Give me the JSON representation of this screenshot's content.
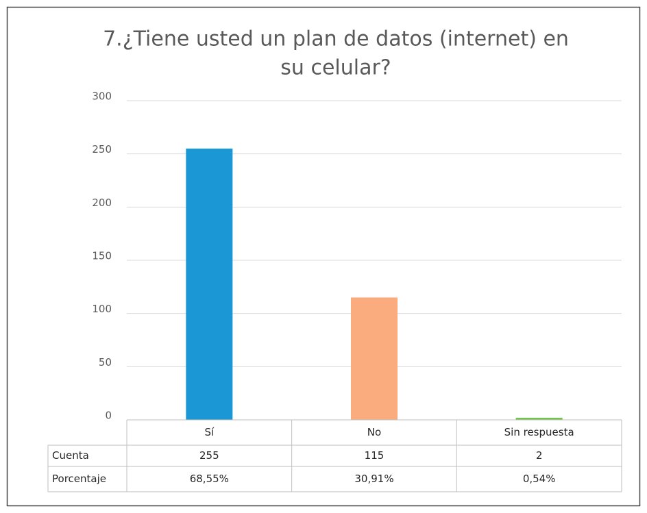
{
  "chart_data": {
    "type": "bar",
    "title": "7.¿Tiene usted un plan de datos (internet) en su celular?",
    "categories": [
      "Sí",
      "No",
      "Sin respuesta"
    ],
    "series": [
      {
        "name": "Cuenta",
        "values": [
          255,
          115,
          2
        ]
      }
    ],
    "colors": [
      "#1b97d5",
      "#fbac7e",
      "#70c452"
    ],
    "data_table_rows": [
      {
        "name": "Porcentaje",
        "values": [
          "68,55%",
          "30,91%",
          "0,54%"
        ]
      }
    ],
    "ylim": [
      0,
      300
    ],
    "yticks": [
      0,
      50,
      100,
      150,
      200,
      250,
      300
    ],
    "grid": true
  }
}
